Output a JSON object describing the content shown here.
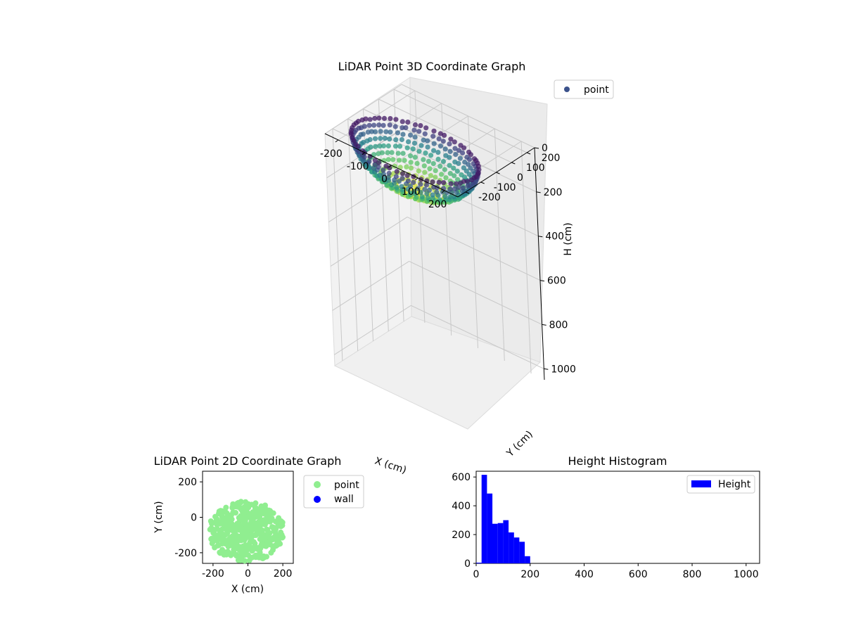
{
  "chart_data": [
    {
      "type": "scatter3d",
      "title": "LiDAR Point 3D Coordinate Graph",
      "xlabel": "X (cm)",
      "ylabel": "Y (cm)",
      "zlabel": "H (cm)",
      "xlim": [
        -250,
        250
      ],
      "ylim": [
        -250,
        250
      ],
      "zlim": [
        0,
        1050
      ],
      "z_inverted": true,
      "xticks": [
        "-200",
        "-100",
        "0",
        "100",
        "200"
      ],
      "yticks": [
        "-200",
        "-100",
        "0",
        "100",
        "200"
      ],
      "zticks": [
        "0",
        "200",
        "400",
        "600",
        "800",
        "1000"
      ],
      "grid": true,
      "legend": {
        "position": "top-right",
        "entries": [
          {
            "label": "point",
            "color": "#3b528b"
          }
        ]
      },
      "colormap": "viridis",
      "point_cloud": {
        "x_range": [
          -230,
          210
        ],
        "y_range": [
          -250,
          90
        ],
        "h_range": [
          0,
          210
        ]
      }
    },
    {
      "type": "scatter",
      "title": "LiDAR Point 2D Coordinate Graph",
      "xlabel": "X (cm)",
      "ylabel": "Y (cm)",
      "xlim": [
        -260,
        260
      ],
      "ylim": [
        -260,
        260
      ],
      "xticks": [
        "-200",
        "0",
        "200"
      ],
      "yticks": [
        "200",
        "0",
        "-200"
      ],
      "legend": {
        "position": "right-outside",
        "entries": [
          {
            "label": "point",
            "color": "#90ee90"
          },
          {
            "label": "wall",
            "color": "#0000ff"
          }
        ]
      },
      "point_cloud": {
        "x_range": [
          -230,
          210
        ],
        "y_range": [
          -250,
          90
        ]
      }
    },
    {
      "type": "bar",
      "title": "Height Histogram",
      "xlabel": "",
      "ylabel": "",
      "xlim": [
        0,
        1050
      ],
      "ylim": [
        0,
        640
      ],
      "xticks": [
        "0",
        "200",
        "400",
        "600",
        "800",
        "1000"
      ],
      "yticks": [
        "0",
        "200",
        "400",
        "600"
      ],
      "bar_color": "#0000ff",
      "legend": {
        "position": "top-right",
        "entries": [
          {
            "label": "Height",
            "color": "#0000ff"
          }
        ]
      },
      "series": [
        {
          "name": "Height",
          "bins": [
            [
              0,
              20,
              5
            ],
            [
              20,
              40,
              615
            ],
            [
              40,
              60,
              485
            ],
            [
              60,
              80,
              275
            ],
            [
              80,
              100,
              280
            ],
            [
              100,
              120,
              300
            ],
            [
              120,
              140,
              215
            ],
            [
              140,
              160,
              180
            ],
            [
              160,
              180,
              150
            ],
            [
              180,
              200,
              50
            ]
          ]
        }
      ]
    }
  ]
}
